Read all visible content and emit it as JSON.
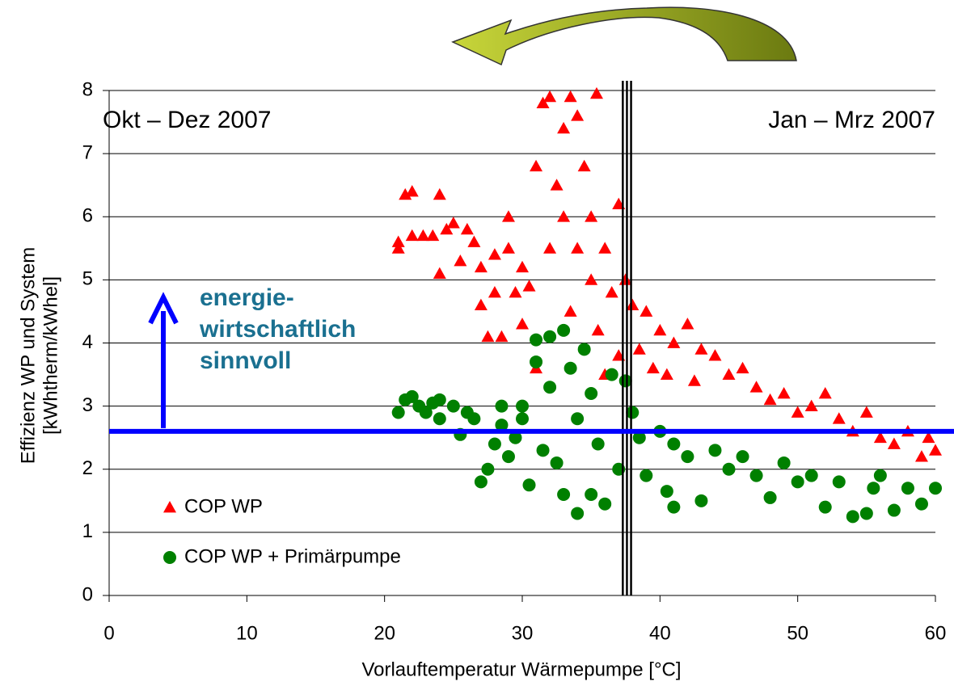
{
  "chart_data": {
    "type": "scatter",
    "xlabel": "Vorlauftemperatur Wärmepumpe  [°C]",
    "ylabel": [
      "Effizienz WP und System",
      "[kWhtherm/kWhel]"
    ],
    "xlim": [
      0,
      60
    ],
    "xticks": [
      0,
      10,
      20,
      30,
      40,
      50,
      60
    ],
    "ylim": [
      0,
      8
    ],
    "yticks": [
      0,
      1,
      2,
      3,
      4,
      5,
      6,
      7,
      8
    ],
    "grid": true,
    "annotations": [
      "Okt – Dez 2007",
      "Jan – Mrz 2007"
    ],
    "note": [
      "energie-",
      "wirtschaftlich",
      "sinnvoll"
    ],
    "threshold": 2.6,
    "divider_x": [
      37.3,
      37.6,
      37.9
    ],
    "legend": "lower left",
    "series": [
      {
        "name": "COP WP",
        "color": "#ff0000",
        "marker": "triangle",
        "x": [
          21,
          21,
          21.5,
          22,
          22,
          22.8,
          23.5,
          24,
          24,
          24.5,
          25,
          25.5,
          26,
          26.5,
          27,
          27,
          27.5,
          28,
          28,
          28.5,
          29,
          29,
          29.5,
          30,
          30,
          30.5,
          31,
          31,
          31.5,
          32,
          32,
          32.5,
          33,
          33,
          33.5,
          33.5,
          34,
          34,
          34.5,
          35,
          35,
          35.4,
          35.5,
          36,
          36,
          36.5,
          37,
          37,
          37.5,
          38,
          38.5,
          39,
          39.5,
          40,
          40.5,
          41,
          42,
          42.5,
          43,
          44,
          45,
          46,
          47,
          48,
          49,
          50,
          51,
          52,
          53,
          54,
          55,
          56,
          57,
          58,
          59,
          59.5,
          60
        ],
        "values": [
          5.5,
          5.6,
          6.35,
          6.4,
          5.7,
          5.7,
          5.7,
          6.35,
          5.1,
          5.8,
          5.9,
          5.3,
          5.8,
          5.6,
          4.6,
          5.2,
          4.1,
          4.8,
          5.4,
          4.1,
          5.5,
          6.0,
          4.8,
          5.2,
          4.3,
          4.9,
          3.6,
          6.8,
          7.8,
          5.5,
          7.9,
          6.5,
          7.4,
          6.0,
          4.5,
          7.9,
          7.6,
          5.5,
          6.8,
          5.0,
          6.0,
          7.95,
          4.2,
          5.5,
          3.5,
          4.8,
          6.2,
          3.8,
          5.0,
          4.6,
          3.9,
          4.5,
          3.6,
          4.2,
          3.5,
          4.0,
          4.3,
          3.4,
          3.9,
          3.8,
          3.5,
          3.6,
          3.3,
          3.1,
          3.2,
          2.9,
          3.0,
          3.2,
          2.8,
          2.6,
          2.9,
          2.5,
          2.4,
          2.6,
          2.2,
          2.5,
          2.3
        ]
      },
      {
        "name": "COP WP + Primärpumpe",
        "color": "#008000",
        "marker": "circle",
        "x": [
          21,
          21.5,
          22,
          22.5,
          23,
          23.5,
          24,
          24,
          25,
          25.5,
          26,
          26.5,
          27,
          27.5,
          28,
          28.5,
          28.5,
          29,
          29.5,
          30,
          30,
          30.5,
          31,
          31,
          31.5,
          32,
          32,
          32.5,
          33,
          33,
          33.5,
          34,
          34,
          34.5,
          35,
          35,
          35.5,
          36,
          36.5,
          37,
          37.5,
          38,
          38.5,
          39,
          40,
          40.5,
          41,
          41,
          42,
          43,
          44,
          45,
          46,
          47,
          48,
          49,
          50,
          51,
          52,
          53,
          54,
          55,
          55.5,
          56,
          57,
          58,
          59,
          60
        ],
        "values": [
          2.9,
          3.1,
          3.15,
          3.0,
          2.9,
          3.05,
          2.8,
          3.1,
          3.0,
          2.55,
          2.9,
          2.8,
          1.8,
          2.0,
          2.4,
          2.7,
          3.0,
          2.2,
          2.5,
          2.8,
          3.0,
          1.75,
          4.05,
          3.7,
          2.3,
          4.1,
          3.3,
          2.1,
          4.2,
          1.6,
          3.6,
          1.3,
          2.8,
          3.9,
          1.6,
          3.2,
          2.4,
          1.45,
          3.5,
          2.0,
          3.4,
          2.9,
          2.5,
          1.9,
          2.6,
          1.65,
          1.4,
          2.4,
          2.2,
          1.5,
          2.3,
          2.0,
          2.2,
          1.9,
          1.55,
          2.1,
          1.8,
          1.9,
          1.4,
          1.8,
          1.25,
          1.3,
          1.7,
          1.9,
          1.35,
          1.7,
          1.45,
          1.7
        ]
      }
    ]
  }
}
